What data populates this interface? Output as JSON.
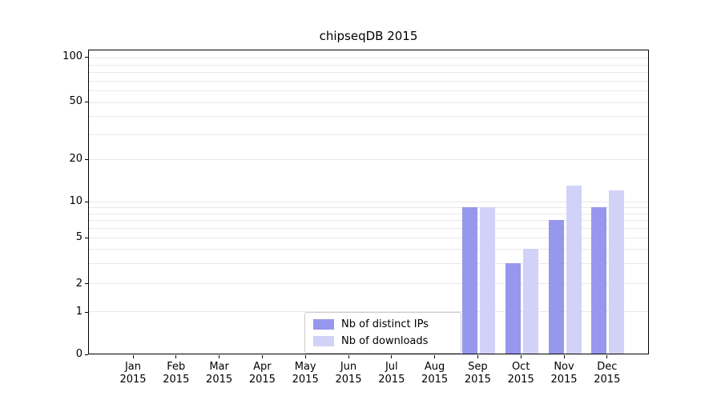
{
  "title": "chipseqDB 2015",
  "colors": {
    "distinct_ips": "#9797ee",
    "downloads": "#d2d2f8",
    "grid": "#e8e8e8",
    "spine": "#000000",
    "legend_border": "#cccccc"
  },
  "y_axis": {
    "tick_labels": [
      "0",
      "1",
      "2",
      "5",
      "10",
      "20",
      "50",
      "100"
    ],
    "tick_values": [
      0,
      1,
      2,
      5,
      10,
      20,
      50,
      100
    ],
    "minor_gridline_values": [
      3,
      4,
      6,
      7,
      8,
      9,
      30,
      40,
      60,
      70,
      80,
      90
    ]
  },
  "x_axis": {
    "months": [
      "Jan",
      "Feb",
      "Mar",
      "Apr",
      "May",
      "Jun",
      "Jul",
      "Aug",
      "Sep",
      "Oct",
      "Nov",
      "Dec"
    ],
    "year": "2015"
  },
  "legend": {
    "items": [
      {
        "label": "Nb of distinct IPs",
        "color_key": "distinct_ips"
      },
      {
        "label": "Nb of downloads",
        "color_key": "downloads"
      }
    ]
  },
  "chart_data": {
    "type": "bar",
    "title": "chipseqDB 2015",
    "categories": [
      "Jan 2015",
      "Feb 2015",
      "Mar 2015",
      "Apr 2015",
      "May 2015",
      "Jun 2015",
      "Jul 2015",
      "Aug 2015",
      "Sep 2015",
      "Oct 2015",
      "Nov 2015",
      "Dec 2015"
    ],
    "series": [
      {
        "name": "Nb of distinct IPs",
        "values": [
          0,
          0,
          0,
          0,
          0,
          0,
          0,
          0,
          9,
          3,
          7,
          9
        ]
      },
      {
        "name": "Nb of downloads",
        "values": [
          0,
          0,
          0,
          0,
          0,
          0,
          0,
          0,
          9,
          4,
          13,
          12
        ]
      }
    ],
    "yscale": "symlog",
    "yticks": [
      0,
      1,
      2,
      5,
      10,
      20,
      50,
      100
    ],
    "ylim": [
      0,
      110
    ],
    "grid": "horizontal-minor-and-major",
    "legend_position": "lower center"
  }
}
